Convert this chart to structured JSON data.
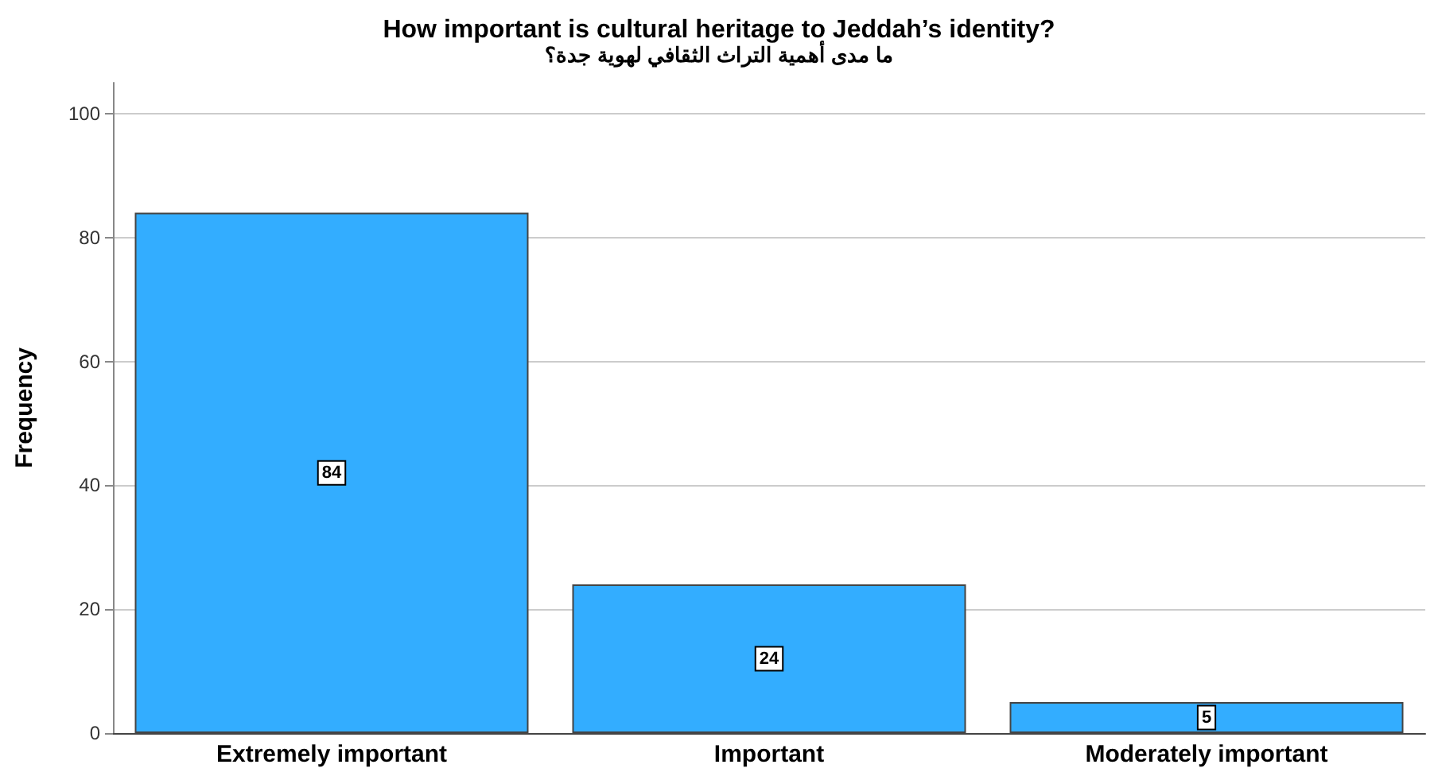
{
  "chart_data": {
    "type": "bar",
    "title": "How important is cultural heritage to Jeddah’s identity?",
    "subtitle": "ما مدى أهمية التراث الثقافي لهوية جدة؟",
    "ylabel": "Frequency",
    "categories": [
      "Extremely important",
      "Important",
      "Moderately important"
    ],
    "values": [
      84,
      24,
      5
    ],
    "color": "#33adff",
    "ylim": [
      0,
      105
    ],
    "yticks": [
      0,
      20,
      40,
      60,
      80,
      100
    ],
    "grid": "y",
    "data_labels": true
  }
}
